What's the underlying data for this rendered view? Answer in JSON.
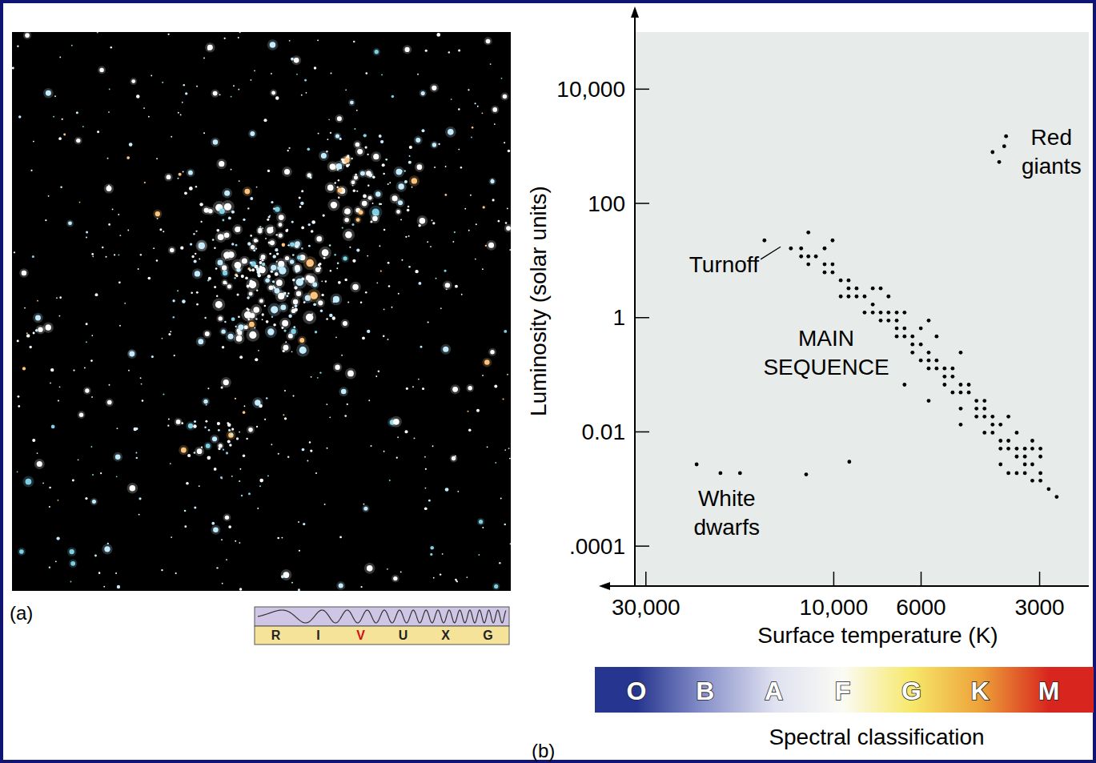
{
  "chart_data": {
    "type": "scatter",
    "x_label": "Surface temperature (K)",
    "y_label": "Luminosity (solar units)",
    "log": true,
    "xlim": [
      32000,
      2250
    ],
    "ylim": [
      2e-05,
      100000
    ],
    "xticks": [
      {
        "value": 30000,
        "label": "30,000"
      },
      {
        "value": 10000,
        "label": "10,000"
      },
      6000,
      3000
    ],
    "yticks": [
      {
        "value": 0.0001,
        "label": ".0001"
      },
      0.01,
      1,
      100,
      {
        "value": 10000,
        "label": "10,000"
      }
    ],
    "color": "#000000",
    "marker": "circle",
    "x": [
      3650,
      3690,
      3950,
      3800,
      15000,
      11600,
      12850,
      12100,
      12100,
      11600,
      10070,
      10550,
      11100,
      10550,
      11600,
      10070,
      10070,
      9600,
      10550,
      9170,
      9600,
      8750,
      9170,
      8350,
      7960,
      7600,
      7960,
      8350,
      7960,
      7600,
      7600,
      7260,
      7260,
      7260,
      6920,
      6920,
      6610,
      6610,
      6610,
      6310,
      6310,
      6920,
      6010,
      6010,
      6310,
      5740,
      5740,
      6010,
      5480,
      5740,
      5480,
      5740,
      6610,
      5230,
      5230,
      4990,
      4990,
      4760,
      4760,
      4990,
      5740,
      4760,
      4540,
      4540,
      4340,
      4760,
      4340,
      4140,
      4760,
      4340,
      4140,
      4140,
      3950,
      4140,
      3950,
      3770,
      3600,
      3770,
      3770,
      3600,
      3600,
      3430,
      3430,
      3430,
      3270,
      3270,
      3130,
      3430,
      3130,
      3130,
      2985,
      2985,
      2985,
      3130,
      3270,
      2845,
      2715,
      3770,
      3600,
      3270,
      2985,
      3950,
      5230,
      5480,
      6920,
      8750,
      9170,
      22300,
      19400,
      17300,
      11750,
      9130
    ],
    "values": [
      1500,
      1000,
      790,
      530,
      22.5,
      31,
      16.3,
      16.3,
      11.8,
      11.8,
      22.5,
      16.3,
      11.8,
      8.6,
      8.6,
      6.2,
      8.6,
      4.5,
      6.2,
      3.25,
      2.35,
      3.25,
      2.35,
      2.35,
      3.25,
      3.25,
      1.7,
      1.23,
      1.23,
      1.23,
      0.89,
      2.35,
      1.23,
      0.89,
      0.89,
      0.65,
      1.23,
      0.65,
      0.47,
      0.47,
      0.34,
      0.47,
      0.65,
      0.34,
      0.245,
      0.89,
      0.245,
      0.178,
      0.178,
      0.178,
      0.47,
      0.129,
      0.067,
      0.129,
      0.093,
      0.129,
      0.093,
      0.245,
      0.067,
      0.049,
      0.035,
      0.049,
      0.049,
      0.067,
      0.035,
      0.0256,
      0.0256,
      0.035,
      0.0134,
      0.0185,
      0.0256,
      0.0185,
      0.0134,
      0.0097,
      0.0097,
      0.0134,
      0.0185,
      0.007,
      0.0051,
      0.007,
      0.0051,
      0.0097,
      0.0051,
      0.0037,
      0.0037,
      0.0051,
      0.0027,
      0.0019,
      0.007,
      0.0051,
      0.0051,
      0.0019,
      0.0014,
      0.0014,
      0.0027,
      0.001,
      0.00073,
      0.0027,
      0.0019,
      0.0019,
      0.0037,
      0.0185,
      0.067,
      0.129,
      1.23,
      2.35,
      4.5,
      0.0027,
      0.0019,
      0.0019,
      0.0018,
      0.003
    ],
    "annotations": [
      {
        "lines": [
          "Red",
          "giants"
        ],
        "x": 2800,
        "y": 790
      },
      {
        "lines": [
          "Turnoff"
        ],
        "x": 19000,
        "y": 8.6,
        "arrow_to": [
          13650,
          17.4
        ]
      },
      {
        "lines": [
          "MAIN",
          "SEQUENCE"
        ],
        "x": 10450,
        "y": 0.245
      },
      {
        "lines": [
          "White",
          "dwarfs"
        ],
        "x": 18700,
        "y": 0.00038
      }
    ],
    "panel_label": "(b)",
    "spectral_classification": {
      "title": "Spectral classification",
      "classes": [
        "O",
        "B",
        "A",
        "F",
        "G",
        "K",
        "M"
      ],
      "colors": [
        "#26358f",
        "#8a93cb",
        "#dfe1f0",
        "#fbfbf5",
        "#f7e86a",
        "#eda23a",
        "#d8261e"
      ]
    }
  },
  "photo": {
    "panel_label": "(a)",
    "bands": [
      "R",
      "I",
      "V",
      "U",
      "X",
      "G"
    ],
    "highlight": "V"
  }
}
